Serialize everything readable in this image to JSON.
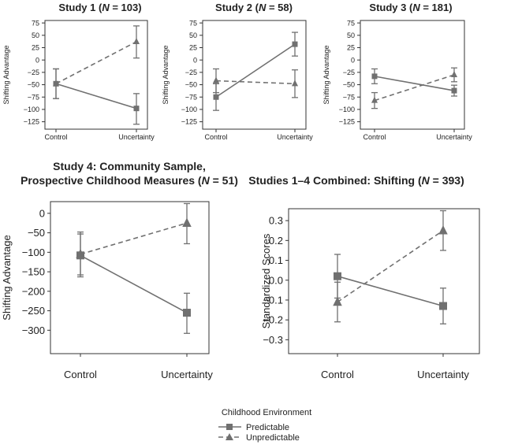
{
  "chart_data": [
    {
      "type": "line",
      "title_parts": [
        [
          "Study 1 (",
          false
        ],
        [
          "N",
          true
        ],
        [
          " = 103)",
          false
        ]
      ],
      "ylabel": "Shifting Advantage",
      "categories": [
        "Control",
        "Uncertainty"
      ],
      "yticks": [
        75,
        50,
        25,
        0,
        -25,
        -50,
        -75,
        -100,
        -125
      ],
      "ylim": [
        -140,
        80
      ],
      "series": [
        {
          "name": "Predictable",
          "values": [
            -48,
            -98
          ],
          "err_low": [
            -78,
            -130
          ],
          "err_high": [
            -18,
            -68
          ]
        },
        {
          "name": "Unpredictable",
          "values": [
            -48,
            37
          ],
          "err_low": [
            -78,
            4
          ],
          "err_high": [
            -18,
            69
          ]
        }
      ]
    },
    {
      "type": "line",
      "title_parts": [
        [
          "Study 2 (",
          false
        ],
        [
          "N",
          true
        ],
        [
          " = 58)",
          false
        ]
      ],
      "ylabel": "Shifting Advantage",
      "categories": [
        "Control",
        "Uncertainty"
      ],
      "yticks": [
        75,
        50,
        25,
        0,
        -25,
        -50,
        -75,
        -100,
        -125
      ],
      "ylim": [
        -140,
        80
      ],
      "series": [
        {
          "name": "Predictable",
          "values": [
            -75,
            32
          ],
          "err_low": [
            -102,
            8
          ],
          "err_high": [
            -48,
            56
          ]
        },
        {
          "name": "Unpredictable",
          "values": [
            -42,
            -48
          ],
          "err_low": [
            -66,
            -76
          ],
          "err_high": [
            -18,
            -20
          ]
        }
      ]
    },
    {
      "type": "line",
      "title_parts": [
        [
          "Study 3 (",
          false
        ],
        [
          "N",
          true
        ],
        [
          " = 181)",
          false
        ]
      ],
      "ylabel": "Shifting Advantage",
      "categories": [
        "Control",
        "Uncertainty"
      ],
      "yticks": [
        75,
        50,
        25,
        0,
        -25,
        -50,
        -75,
        -100,
        -125
      ],
      "ylim": [
        -140,
        80
      ],
      "series": [
        {
          "name": "Predictable",
          "values": [
            -33,
            -62
          ],
          "err_low": [
            -48,
            -73
          ],
          "err_high": [
            -18,
            -51
          ]
        },
        {
          "name": "Unpredictable",
          "values": [
            -82,
            -30
          ],
          "err_low": [
            -98,
            -44
          ],
          "err_high": [
            -66,
            -16
          ]
        }
      ]
    },
    {
      "type": "line",
      "title_parts": [
        [
          "Study 4: Community Sample,",
          false
        ],
        [
          "|",
          false
        ],
        [
          "Prospective Childhood Measures (",
          false
        ],
        [
          "N",
          true
        ],
        [
          " = 51)",
          false
        ]
      ],
      "ylabel": "Shifting Advantage",
      "categories": [
        "Control",
        "Uncertainty"
      ],
      "yticks": [
        0,
        -50,
        -100,
        -150,
        -200,
        -250,
        -300
      ],
      "ylim": [
        -360,
        30
      ],
      "series": [
        {
          "name": "Predictable",
          "values": [
            -108,
            -255
          ],
          "err_low": [
            -163,
            -308
          ],
          "err_high": [
            -53,
            -205
          ]
        },
        {
          "name": "Unpredictable",
          "values": [
            -105,
            -25
          ],
          "err_low": [
            -158,
            -78
          ],
          "err_high": [
            -48,
            25
          ]
        }
      ]
    },
    {
      "type": "line",
      "title_parts": [
        [
          "Studies 1–4 Combined: Shifting (",
          false
        ],
        [
          "N",
          true
        ],
        [
          " = 393)",
          false
        ]
      ],
      "ylabel": "Standardized Scores",
      "categories": [
        "Control",
        "Uncertainty"
      ],
      "yticks": [
        0.3,
        0.2,
        0.1,
        0.0,
        -0.1,
        -0.2,
        -0.3
      ],
      "ytick_labels": [
        "0.3",
        "0.2",
        "0.1",
        "0.0",
        "−0.1",
        "−0.2",
        "−0.3"
      ],
      "ylim": [
        -0.37,
        0.36
      ],
      "series": [
        {
          "name": "Predictable",
          "values": [
            0.02,
            -0.13
          ],
          "err_low": [
            -0.09,
            -0.22
          ],
          "err_high": [
            0.13,
            -0.04
          ]
        },
        {
          "name": "Unpredictable",
          "values": [
            -0.11,
            0.25
          ],
          "err_low": [
            -0.21,
            0.15
          ],
          "err_high": [
            -0.01,
            0.35
          ]
        }
      ]
    }
  ],
  "legend": {
    "title": "Childhood Environment",
    "items": [
      {
        "label": "Predictable",
        "style": "solid",
        "marker": "square"
      },
      {
        "label": "Unpredictable",
        "style": "dashed",
        "marker": "triangle"
      }
    ]
  },
  "colors": {
    "series": "#707070",
    "frame": "#333333",
    "text": "#222222"
  }
}
